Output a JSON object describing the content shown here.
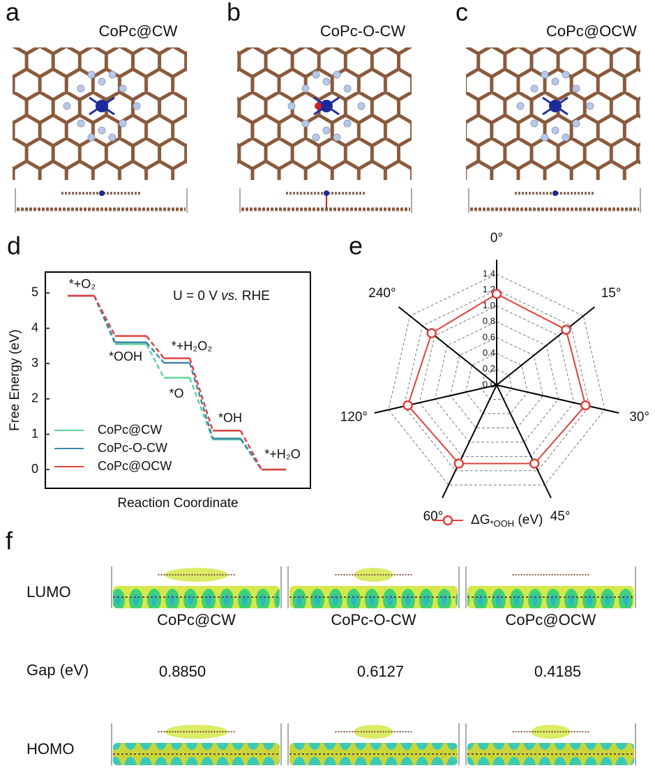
{
  "panels": [
    {
      "letter": "a",
      "title": "CoPc@CW"
    },
    {
      "letter": "b",
      "title": "CoPc-O-CW"
    },
    {
      "letter": "c",
      "title": "CoPc@OCW"
    }
  ],
  "chart_data": [
    {
      "type": "step",
      "letter": "d",
      "ylabel": "Free Energy (eV)",
      "xlabel": "Reaction Coordinate",
      "annotation": [
        "U = 0 V ",
        "vs.",
        " RHE"
      ],
      "step_labels": [
        "*+O₂",
        "*OOH",
        "*+H₂O₂",
        "*O",
        "*OH",
        "*+H₂O"
      ],
      "series": [
        {
          "name": "CoPc@CW",
          "color": "#5fd39c",
          "values": [
            4.92,
            3.55,
            2.6,
            0.85,
            0
          ]
        },
        {
          "name": "CoPc-O-CW",
          "color": "#3f86a8",
          "values": [
            4.92,
            3.6,
            3.02,
            0.88,
            0
          ]
        },
        {
          "name": "CoPc@OCW",
          "color": "#e0403e",
          "values": [
            4.92,
            3.78,
            3.15,
            1.1,
            0
          ]
        }
      ],
      "ylim": [
        -0.53,
        5.59
      ],
      "yticks": [
        0,
        1,
        2,
        3,
        4,
        5
      ]
    },
    {
      "type": "radar",
      "letter": "e",
      "categories": [
        "0°",
        "15°",
        "30°",
        "45°",
        "60°",
        "120°",
        "240°"
      ],
      "series": [
        {
          "name": "ΔG",
          "name_sub": "*OOH",
          "unit": " (eV)",
          "color": "#e0403e",
          "values": [
            1.15,
            1.12,
            1.15,
            1.1,
            1.1,
            1.15,
            1.05
          ]
        }
      ],
      "rlim": [
        0,
        1.4
      ],
      "rticks": [
        {
          "value": 0,
          "label": "0.0"
        },
        0.2,
        0.4,
        0.6,
        0.8,
        {
          "value": 1,
          "label": "1.0"
        },
        1.2,
        1.4
      ]
    }
  ],
  "panel_f": {
    "letter": "f",
    "rows": [
      "LUMO",
      "Gap (eV)",
      "HOMO"
    ],
    "names": [
      "CoPc@CW",
      "CoPc-O-CW",
      "CoPc@OCW"
    ],
    "gaps": [
      "0.8850",
      "0.6127",
      "0.4185"
    ]
  }
}
